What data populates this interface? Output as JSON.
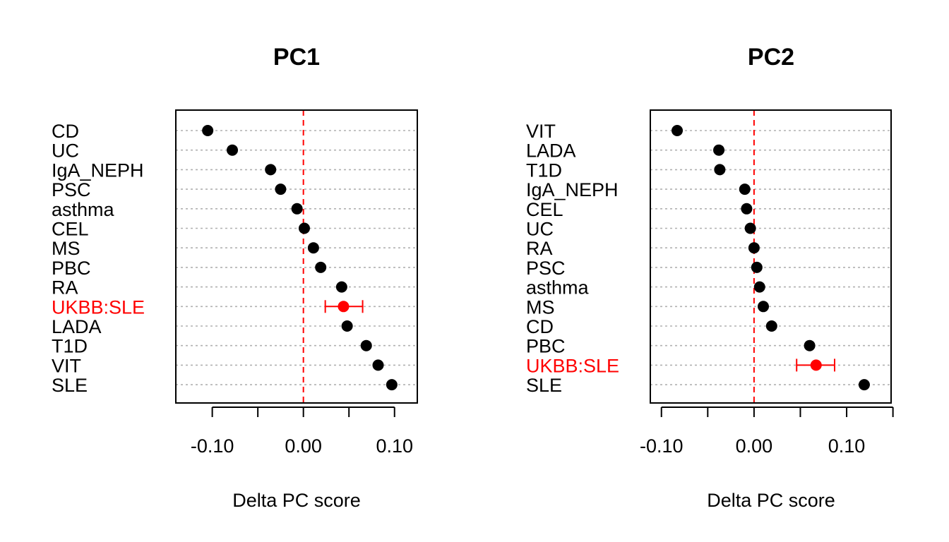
{
  "chart_data": [
    {
      "type": "scatter",
      "title": "PC1",
      "xlabel": "Delta PC score",
      "ylabel": "",
      "xlim": [
        -0.14,
        0.125
      ],
      "xticks": [
        -0.1,
        -0.05,
        0.0,
        0.05,
        0.1
      ],
      "xtick_labels": [
        "-0.10",
        "",
        "0.00",
        "",
        "0.10"
      ],
      "reference_line": 0.0,
      "grid": "horizontal-dotted",
      "categories": [
        "CD",
        "UC",
        "IgA_NEPH",
        "PSC",
        "asthma",
        "CEL",
        "MS",
        "PBC",
        "RA",
        "UKBB:SLE",
        "LADA",
        "T1D",
        "VIT",
        "SLE"
      ],
      "values": [
        -0.105,
        -0.078,
        -0.036,
        -0.025,
        -0.007,
        0.001,
        0.011,
        0.019,
        0.042,
        0.044,
        0.048,
        0.069,
        0.082,
        0.097
      ],
      "highlight": {
        "category": "UKBB:SLE",
        "value": 0.044,
        "ci": [
          0.024,
          0.065
        ],
        "color": "#ff0000"
      }
    },
    {
      "type": "scatter",
      "title": "PC2",
      "xlabel": "Delta PC score",
      "ylabel": "",
      "xlim": [
        -0.112,
        0.148
      ],
      "xticks": [
        -0.1,
        -0.05,
        0.0,
        0.05,
        0.1,
        0.15
      ],
      "xtick_labels": [
        "-0.10",
        "",
        "0.00",
        "",
        "0.10",
        ""
      ],
      "reference_line": 0.0,
      "grid": "horizontal-dotted",
      "categories": [
        "VIT",
        "LADA",
        "T1D",
        "IgA_NEPH",
        "CEL",
        "UC",
        "RA",
        "PSC",
        "asthma",
        "MS",
        "CD",
        "PBC",
        "UKBB:SLE",
        "SLE"
      ],
      "values": [
        -0.083,
        -0.038,
        -0.037,
        -0.01,
        -0.008,
        -0.004,
        0.0,
        0.003,
        0.006,
        0.01,
        0.019,
        0.06,
        0.067,
        0.119
      ],
      "highlight": {
        "category": "UKBB:SLE",
        "value": 0.067,
        "ci": [
          0.046,
          0.087
        ],
        "color": "#ff0000"
      }
    }
  ]
}
